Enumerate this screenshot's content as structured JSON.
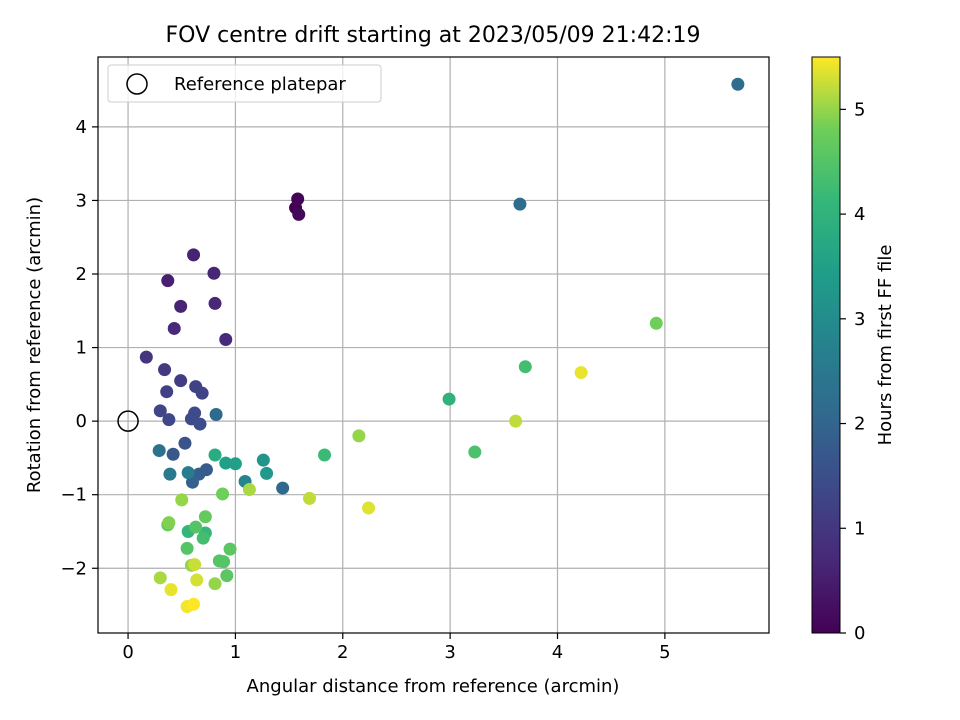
{
  "chart_data": {
    "type": "scatter",
    "title": "FOV centre drift starting at 2023/05/09 21:42:19",
    "xlabel": "Angular distance from reference (arcmin)",
    "ylabel": "Rotation from reference (arcmin)",
    "xlim": [
      -0.28,
      5.97
    ],
    "ylim": [
      -2.88,
      4.95
    ],
    "x_ticks": [
      0,
      1,
      2,
      3,
      4,
      5
    ],
    "y_ticks": [
      -2,
      -1,
      0,
      1,
      2,
      3,
      4
    ],
    "grid": true,
    "legend": {
      "position": "top-left",
      "entries": [
        "Reference platepar"
      ]
    },
    "reference_point": {
      "x": 0,
      "y": 0
    },
    "colorbar": {
      "label": "Hours from first FF file",
      "colormap": "viridis",
      "range": [
        0,
        5.5
      ],
      "ticks": [
        0,
        1,
        2,
        3,
        4,
        5
      ]
    },
    "points": [
      {
        "x": 1.56,
        "y": 2.9,
        "c": 0.0
      },
      {
        "x": 1.58,
        "y": 3.02,
        "c": 0.05
      },
      {
        "x": 1.59,
        "y": 2.81,
        "c": 0.1
      },
      {
        "x": 0.37,
        "y": 1.91,
        "c": 0.55
      },
      {
        "x": 0.61,
        "y": 2.26,
        "c": 0.6
      },
      {
        "x": 0.49,
        "y": 1.56,
        "c": 0.62
      },
      {
        "x": 0.8,
        "y": 2.01,
        "c": 0.65
      },
      {
        "x": 0.81,
        "y": 1.6,
        "c": 0.7
      },
      {
        "x": 0.43,
        "y": 1.26,
        "c": 0.72
      },
      {
        "x": 0.91,
        "y": 1.11,
        "c": 0.75
      },
      {
        "x": 0.17,
        "y": 0.87,
        "c": 0.95
      },
      {
        "x": 0.34,
        "y": 0.7,
        "c": 1.05
      },
      {
        "x": 0.49,
        "y": 0.55,
        "c": 1.1
      },
      {
        "x": 0.36,
        "y": 0.4,
        "c": 1.2
      },
      {
        "x": 0.63,
        "y": 0.47,
        "c": 1.2
      },
      {
        "x": 0.69,
        "y": 0.38,
        "c": 1.25
      },
      {
        "x": 0.3,
        "y": 0.14,
        "c": 1.3
      },
      {
        "x": 0.38,
        "y": 0.02,
        "c": 1.35
      },
      {
        "x": 0.62,
        "y": 0.11,
        "c": 1.4
      },
      {
        "x": 0.59,
        "y": 0.03,
        "c": 1.4
      },
      {
        "x": 0.67,
        "y": -0.04,
        "c": 1.45
      },
      {
        "x": 0.53,
        "y": -0.3,
        "c": 1.6
      },
      {
        "x": 0.42,
        "y": -0.45,
        "c": 1.7
      },
      {
        "x": 0.73,
        "y": -0.66,
        "c": 1.8
      },
      {
        "x": 0.66,
        "y": -0.72,
        "c": 1.85
      },
      {
        "x": 0.6,
        "y": -0.83,
        "c": 1.9
      },
      {
        "x": 0.82,
        "y": 0.09,
        "c": 2.1
      },
      {
        "x": 1.44,
        "y": -0.91,
        "c": 2.1
      },
      {
        "x": 3.65,
        "y": 2.95,
        "c": 2.2
      },
      {
        "x": 5.68,
        "y": 4.58,
        "c": 2.2
      },
      {
        "x": 0.29,
        "y": -0.4,
        "c": 2.3
      },
      {
        "x": 0.39,
        "y": -0.72,
        "c": 2.5
      },
      {
        "x": 0.56,
        "y": -0.7,
        "c": 2.6
      },
      {
        "x": 1.09,
        "y": -0.82,
        "c": 2.8
      },
      {
        "x": 1.26,
        "y": -0.53,
        "c": 3.2
      },
      {
        "x": 1.29,
        "y": -0.71,
        "c": 3.3
      },
      {
        "x": 0.91,
        "y": -0.57,
        "c": 3.5
      },
      {
        "x": 1.0,
        "y": -0.58,
        "c": 3.5
      },
      {
        "x": 0.81,
        "y": -0.46,
        "c": 3.8
      },
      {
        "x": 2.99,
        "y": 0.3,
        "c": 4.0
      },
      {
        "x": 0.56,
        "y": -1.5,
        "c": 4.1
      },
      {
        "x": 0.72,
        "y": -1.52,
        "c": 4.1
      },
      {
        "x": 1.83,
        "y": -0.46,
        "c": 4.2
      },
      {
        "x": 0.7,
        "y": -1.59,
        "c": 4.3
      },
      {
        "x": 3.7,
        "y": 0.74,
        "c": 4.3
      },
      {
        "x": 3.23,
        "y": -0.42,
        "c": 4.4
      },
      {
        "x": 0.63,
        "y": -1.44,
        "c": 4.5
      },
      {
        "x": 0.55,
        "y": -1.73,
        "c": 4.5
      },
      {
        "x": 0.85,
        "y": -1.9,
        "c": 4.5
      },
      {
        "x": 0.89,
        "y": -1.91,
        "c": 4.5
      },
      {
        "x": 0.95,
        "y": -1.74,
        "c": 4.6
      },
      {
        "x": 0.92,
        "y": -2.1,
        "c": 4.6
      },
      {
        "x": 0.37,
        "y": -1.41,
        "c": 4.7
      },
      {
        "x": 0.72,
        "y": -1.3,
        "c": 4.7
      },
      {
        "x": 0.88,
        "y": -0.99,
        "c": 4.8
      },
      {
        "x": 4.92,
        "y": 1.33,
        "c": 4.8
      },
      {
        "x": 0.38,
        "y": -1.38,
        "c": 4.9
      },
      {
        "x": 0.5,
        "y": -1.07,
        "c": 5.0
      },
      {
        "x": 2.15,
        "y": -0.2,
        "c": 5.0
      },
      {
        "x": 0.59,
        "y": -1.96,
        "c": 5.0
      },
      {
        "x": 0.81,
        "y": -2.21,
        "c": 5.0
      },
      {
        "x": 1.13,
        "y": -0.93,
        "c": 5.1
      },
      {
        "x": 0.3,
        "y": -2.13,
        "c": 5.1
      },
      {
        "x": 1.69,
        "y": -1.05,
        "c": 5.2
      },
      {
        "x": 3.61,
        "y": 0.0,
        "c": 5.2
      },
      {
        "x": 0.62,
        "y": -1.95,
        "c": 5.25
      },
      {
        "x": 0.64,
        "y": -2.16,
        "c": 5.3
      },
      {
        "x": 2.24,
        "y": -1.18,
        "c": 5.35
      },
      {
        "x": 4.22,
        "y": 0.66,
        "c": 5.4
      },
      {
        "x": 0.4,
        "y": -2.29,
        "c": 5.4
      },
      {
        "x": 0.55,
        "y": -2.52,
        "c": 5.45
      },
      {
        "x": 0.61,
        "y": -2.49,
        "c": 5.5
      }
    ]
  }
}
